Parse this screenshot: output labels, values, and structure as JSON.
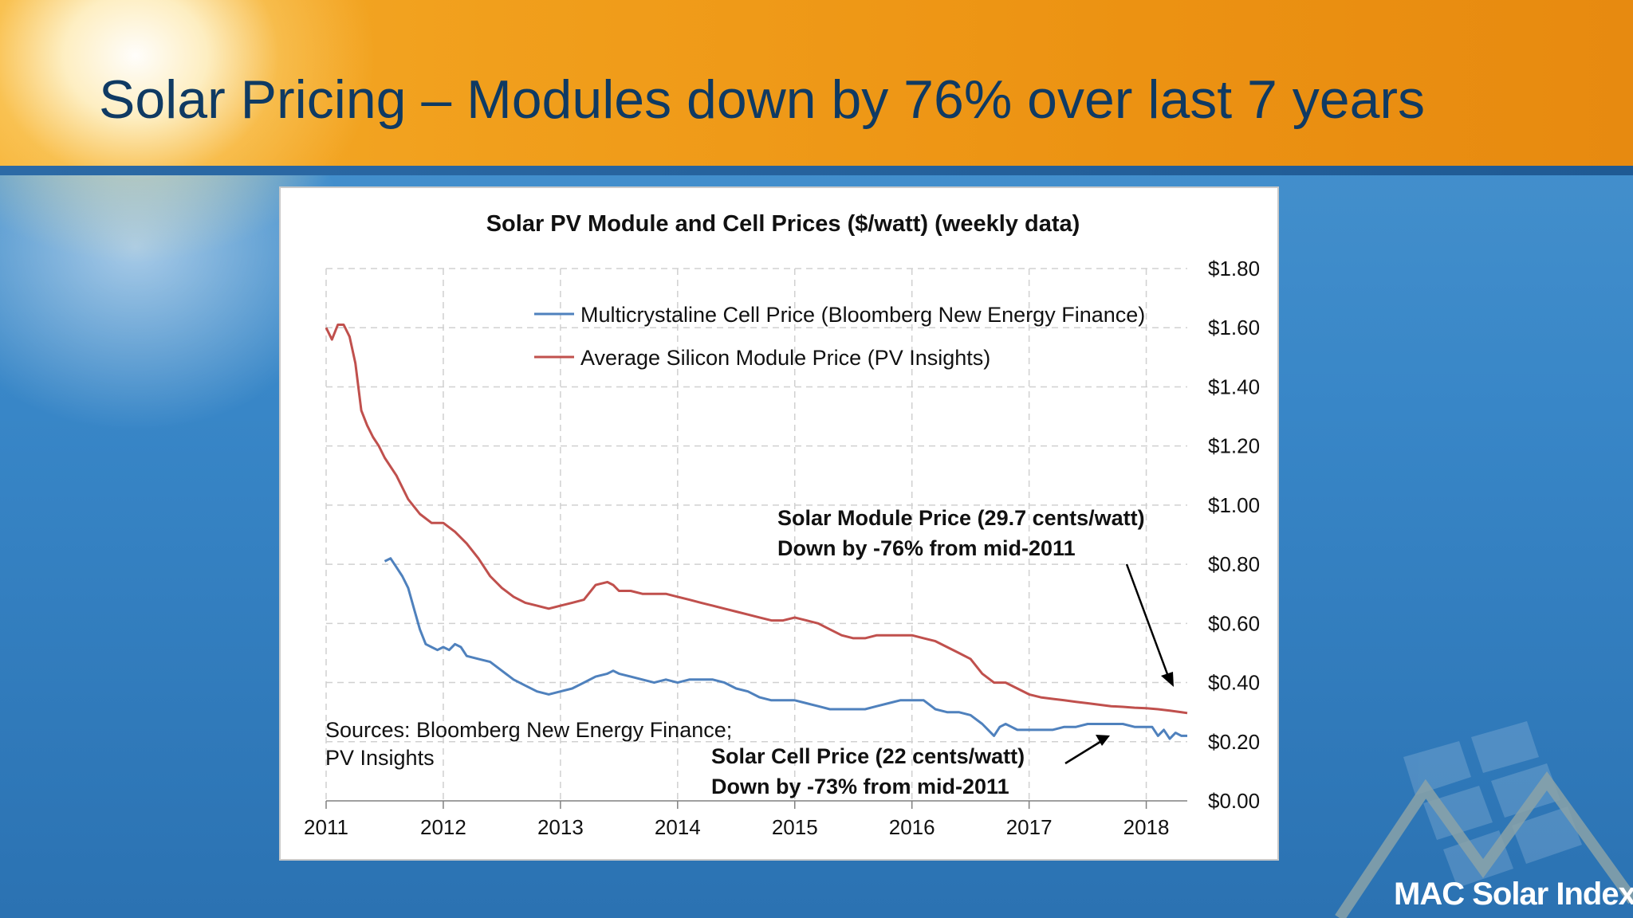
{
  "slide": {
    "title": "Solar Pricing – Modules down by 76% over last 7 years",
    "logo_text": "MAC Solar Index"
  },
  "colors": {
    "header_orange": "#f19f1c",
    "title_navy": "#0f3a63",
    "background_blue": "#3886c7",
    "cell_series": "#4f81bd",
    "module_series": "#c0504d"
  },
  "chart_data": {
    "type": "line",
    "title": "Solar PV Module and Cell Prices ($/watt) (weekly data)",
    "xlabel": "",
    "ylabel": "",
    "x_axis": {
      "ticks": [
        2011,
        2012,
        2013,
        2014,
        2015,
        2016,
        2017,
        2018
      ],
      "range": [
        2011,
        2018.35
      ]
    },
    "y_axis": {
      "side": "right",
      "range": [
        0,
        1.8
      ],
      "ticks": [
        "$0.00",
        "$0.20",
        "$0.40",
        "$0.60",
        "$0.80",
        "$1.00",
        "$1.20",
        "$1.40",
        "$1.60",
        "$1.80"
      ],
      "tick_values": [
        0,
        0.2,
        0.4,
        0.6,
        0.8,
        1.0,
        1.2,
        1.4,
        1.6,
        1.8
      ]
    },
    "grid": "dashed, both axes",
    "legend_position": "top-right",
    "series": [
      {
        "name": "Multicrystaline Cell Price (Bloomberg New Energy Finance)",
        "color": "#4f81bd",
        "x": [
          2011.5,
          2011.55,
          2011.6,
          2011.65,
          2011.7,
          2011.75,
          2011.8,
          2011.85,
          2011.9,
          2011.95,
          2012.0,
          2012.05,
          2012.1,
          2012.15,
          2012.2,
          2012.3,
          2012.4,
          2012.5,
          2012.6,
          2012.7,
          2012.8,
          2012.9,
          2013.0,
          2013.1,
          2013.2,
          2013.3,
          2013.4,
          2013.45,
          2013.5,
          2013.6,
          2013.7,
          2013.8,
          2013.9,
          2014.0,
          2014.1,
          2014.2,
          2014.3,
          2014.4,
          2014.5,
          2014.6,
          2014.7,
          2014.8,
          2014.9,
          2015.0,
          2015.1,
          2015.2,
          2015.3,
          2015.4,
          2015.5,
          2015.6,
          2015.7,
          2015.8,
          2015.9,
          2016.0,
          2016.1,
          2016.2,
          2016.3,
          2016.4,
          2016.5,
          2016.6,
          2016.65,
          2016.7,
          2016.75,
          2016.8,
          2016.85,
          2016.9,
          2017.0,
          2017.1,
          2017.2,
          2017.3,
          2017.4,
          2017.5,
          2017.6,
          2017.7,
          2017.8,
          2017.9,
          2018.0,
          2018.05,
          2018.1,
          2018.15,
          2018.2,
          2018.25,
          2018.3,
          2018.35
        ],
        "values": [
          0.81,
          0.82,
          0.79,
          0.76,
          0.72,
          0.65,
          0.58,
          0.53,
          0.52,
          0.51,
          0.52,
          0.51,
          0.53,
          0.52,
          0.49,
          0.48,
          0.47,
          0.44,
          0.41,
          0.39,
          0.37,
          0.36,
          0.37,
          0.38,
          0.4,
          0.42,
          0.43,
          0.44,
          0.43,
          0.42,
          0.41,
          0.4,
          0.41,
          0.4,
          0.41,
          0.41,
          0.41,
          0.4,
          0.38,
          0.37,
          0.35,
          0.34,
          0.34,
          0.34,
          0.33,
          0.32,
          0.31,
          0.31,
          0.31,
          0.31,
          0.32,
          0.33,
          0.34,
          0.34,
          0.34,
          0.31,
          0.3,
          0.3,
          0.29,
          0.26,
          0.24,
          0.22,
          0.25,
          0.26,
          0.25,
          0.24,
          0.24,
          0.24,
          0.24,
          0.25,
          0.25,
          0.26,
          0.26,
          0.26,
          0.26,
          0.25,
          0.25,
          0.25,
          0.22,
          0.24,
          0.21,
          0.23,
          0.22,
          0.22
        ]
      },
      {
        "name": "Average Silicon Module Price (PV Insights)",
        "color": "#c0504d",
        "x": [
          2011.0,
          2011.05,
          2011.1,
          2011.15,
          2011.2,
          2011.25,
          2011.3,
          2011.35,
          2011.4,
          2011.45,
          2011.5,
          2011.6,
          2011.7,
          2011.8,
          2011.9,
          2012.0,
          2012.1,
          2012.2,
          2012.3,
          2012.4,
          2012.5,
          2012.6,
          2012.7,
          2012.8,
          2012.9,
          2013.0,
          2013.1,
          2013.2,
          2013.3,
          2013.4,
          2013.45,
          2013.5,
          2013.6,
          2013.7,
          2013.8,
          2013.9,
          2014.0,
          2014.1,
          2014.2,
          2014.3,
          2014.4,
          2014.5,
          2014.6,
          2014.7,
          2014.8,
          2014.9,
          2015.0,
          2015.1,
          2015.2,
          2015.3,
          2015.4,
          2015.5,
          2015.6,
          2015.7,
          2015.8,
          2015.9,
          2016.0,
          2016.1,
          2016.2,
          2016.3,
          2016.4,
          2016.5,
          2016.6,
          2016.7,
          2016.8,
          2016.9,
          2017.0,
          2017.1,
          2017.2,
          2017.3,
          2017.4,
          2017.5,
          2017.6,
          2017.7,
          2017.8,
          2017.9,
          2018.0,
          2018.1,
          2018.2,
          2018.3,
          2018.35
        ],
        "values": [
          1.6,
          1.56,
          1.61,
          1.61,
          1.57,
          1.48,
          1.32,
          1.27,
          1.23,
          1.2,
          1.16,
          1.1,
          1.02,
          0.97,
          0.94,
          0.94,
          0.91,
          0.87,
          0.82,
          0.76,
          0.72,
          0.69,
          0.67,
          0.66,
          0.65,
          0.66,
          0.67,
          0.68,
          0.73,
          0.74,
          0.73,
          0.71,
          0.71,
          0.7,
          0.7,
          0.7,
          0.69,
          0.68,
          0.67,
          0.66,
          0.65,
          0.64,
          0.63,
          0.62,
          0.61,
          0.61,
          0.62,
          0.61,
          0.6,
          0.58,
          0.56,
          0.55,
          0.55,
          0.56,
          0.56,
          0.56,
          0.56,
          0.55,
          0.54,
          0.52,
          0.5,
          0.48,
          0.43,
          0.4,
          0.4,
          0.38,
          0.36,
          0.35,
          0.345,
          0.34,
          0.335,
          0.33,
          0.325,
          0.32,
          0.318,
          0.315,
          0.313,
          0.31,
          0.305,
          0.3,
          0.297
        ]
      }
    ],
    "legend": [
      "Multicrystaline Cell Price (Bloomberg New Energy Finance)",
      "Average Silicon Module Price (PV Insights)"
    ],
    "annotations": {
      "module_line1": "Solar Module Price (29.7 cents/watt)",
      "module_line2": "Down by -76% from mid-2011",
      "cell_line1": "Solar Cell Price (22 cents/watt)",
      "cell_line2": "Down by -73% from mid-2011",
      "sources_line1": "Sources: Bloomberg New Energy Finance;",
      "sources_line2": "PV Insights"
    }
  }
}
